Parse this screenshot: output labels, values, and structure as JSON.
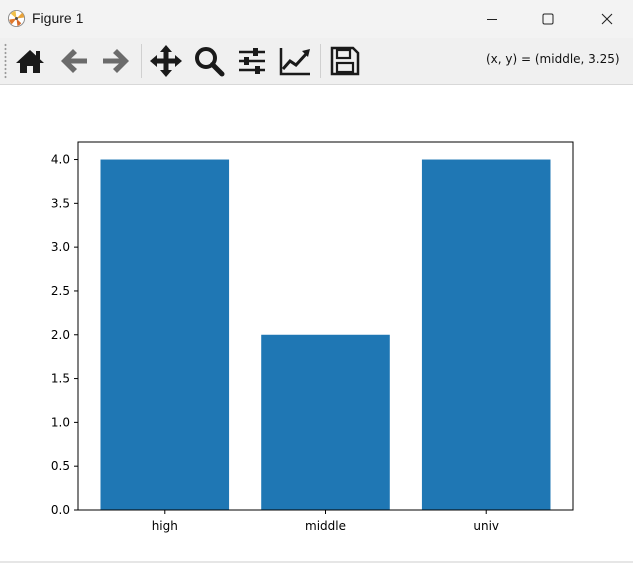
{
  "window": {
    "title": "Figure 1",
    "controls": {
      "minimize": "minimize-icon",
      "maximize": "maximize-icon",
      "close": "close-icon"
    }
  },
  "toolbar": {
    "buttons": [
      {
        "name": "home",
        "icon": "home-icon"
      },
      {
        "name": "back",
        "icon": "arrow-left-icon"
      },
      {
        "name": "forward",
        "icon": "arrow-right-icon"
      },
      {
        "name": "pan",
        "icon": "move-icon"
      },
      {
        "name": "zoom",
        "icon": "magnifier-icon"
      },
      {
        "name": "subplots",
        "icon": "sliders-icon"
      },
      {
        "name": "edit-axes",
        "icon": "line-chart-icon"
      },
      {
        "name": "save",
        "icon": "floppy-disk-icon"
      }
    ],
    "coordinates": "(x, y) = (middle, 3.25)"
  },
  "colors": {
    "bar": "#1f77b4",
    "titlebar": "#f3f3f3",
    "toolbar": "#f0f0f0",
    "icon": "#1a1a1a",
    "icon_disabled": "#6b6b6b"
  },
  "chart_data": {
    "type": "bar",
    "categories": [
      "high",
      "middle",
      "univ"
    ],
    "values": [
      4.0,
      2.0,
      4.0
    ],
    "title": "",
    "xlabel": "",
    "ylabel": "",
    "ylim": [
      0,
      4.2
    ],
    "yticks": [
      "0.0",
      "0.5",
      "1.0",
      "1.5",
      "2.0",
      "2.5",
      "3.0",
      "3.5",
      "4.0"
    ],
    "grid": false
  }
}
